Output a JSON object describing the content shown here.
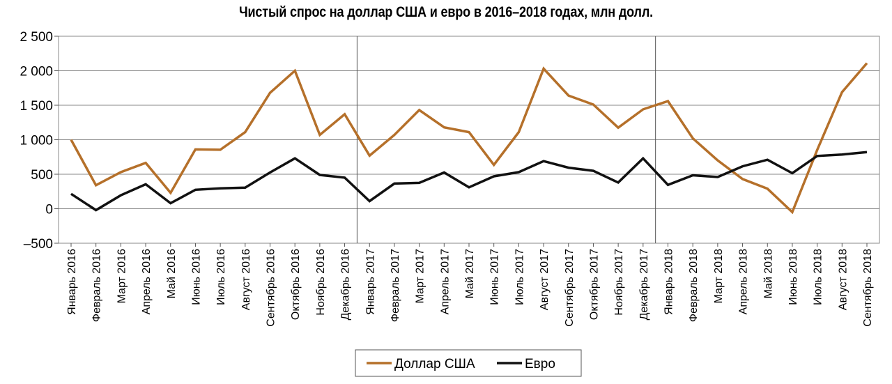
{
  "chart_data": {
    "type": "line",
    "title": "Чистый спрос на доллар США и евро в 2016–2018 годах, млн долл.",
    "ylim": [
      -500,
      2500
    ],
    "yticks": [
      -500,
      0,
      500,
      1000,
      1500,
      2000,
      2500
    ],
    "ytick_labels": [
      "–500",
      "0",
      "500",
      "1 000",
      "1 500",
      "2 000",
      "2 500"
    ],
    "grid": "horizontal",
    "year_separators_after_index": [
      11,
      23
    ],
    "legend": "bottom",
    "categories": [
      "Январь 2016",
      "Февраль 2016",
      "Март 2016",
      "Апрель 2016",
      "Май 2016",
      "Июнь 2016",
      "Июль 2016",
      "Август 2016",
      "Сентябрь 2016",
      "Октябрь 2016",
      "Ноябрь 2016",
      "Декабрь 2016",
      "Январь 2017",
      "Февраль 2017",
      "Март 2017",
      "Апрель 2017",
      "Май 2017",
      "Июнь 2017",
      "Июль 2017",
      "Август 2017",
      "Сентябрь 2017",
      "Октябрь 2017",
      "Ноябрь 2017",
      "Декабрь 2017",
      "Январь 2018",
      "Февраль 2018",
      "Март 2018",
      "Апрель 2018",
      "Май 2018",
      "Июнь 2018",
      "Июль 2018",
      "Август 2018",
      "Сентябрь 2018"
    ],
    "series": [
      {
        "name": "Доллар США",
        "color": "#b5702a",
        "values": [
          1000,
          340,
          530,
          665,
          230,
          860,
          855,
          1110,
          1680,
          2000,
          1070,
          1370,
          770,
          1070,
          1430,
          1180,
          1110,
          635,
          1110,
          2030,
          1640,
          1510,
          1175,
          1440,
          1560,
          1020,
          700,
          430,
          290,
          -50,
          850,
          1690,
          2110
        ]
      },
      {
        "name": "Евро",
        "color": "#111111",
        "values": [
          215,
          -20,
          195,
          355,
          80,
          275,
          295,
          305,
          525,
          730,
          490,
          450,
          110,
          365,
          375,
          525,
          310,
          470,
          530,
          690,
          595,
          550,
          380,
          730,
          345,
          485,
          460,
          615,
          710,
          515,
          765,
          785,
          820
        ]
      }
    ]
  }
}
